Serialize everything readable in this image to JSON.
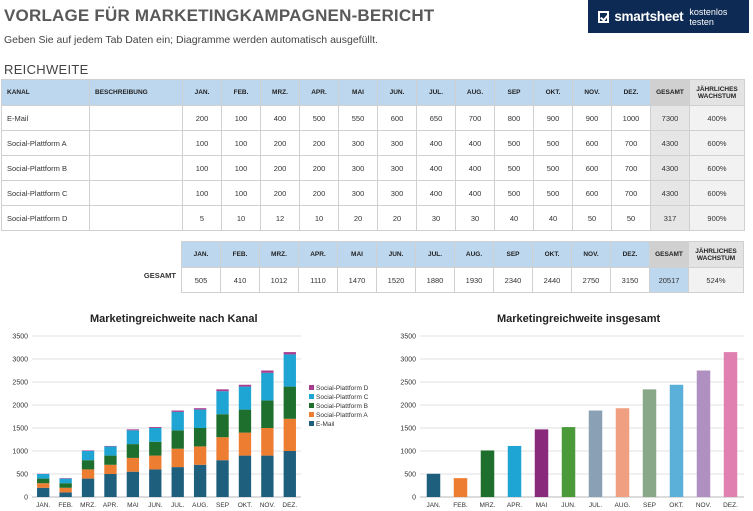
{
  "header": {
    "title": "VORLAGE FÜR MARKETINGKAMPAGNEN-BERICHT",
    "subtitle": "Geben Sie auf jedem Tab Daten ein; Diagramme werden automatisch ausgefüllt.",
    "section": "REICHWEITE"
  },
  "logo": {
    "brand": "smartsheet",
    "cta": "kostenlos testen",
    "icon": "checkmark-box-icon"
  },
  "table": {
    "headers": [
      "KANAL",
      "BESCHREIBUNG",
      "JAN.",
      "FEB.",
      "MRZ.",
      "APR.",
      "MAI",
      "JUN.",
      "JUL.",
      "AUG.",
      "SEP",
      "OKT.",
      "NOV.",
      "DEZ.",
      "GESAMT",
      "JÄHRLICHES WACHSTUM"
    ],
    "rows": [
      {
        "kanal": "E-Mail",
        "beschreibung": "",
        "values": [
          "200",
          "100",
          "400",
          "500",
          "550",
          "600",
          "650",
          "700",
          "800",
          "900",
          "900",
          "1000"
        ],
        "gesamt": "7300",
        "wachstum": "400%"
      },
      {
        "kanal": "Social-Plattform A",
        "beschreibung": "",
        "values": [
          "100",
          "100",
          "200",
          "200",
          "300",
          "300",
          "400",
          "400",
          "500",
          "500",
          "600",
          "700"
        ],
        "gesamt": "4300",
        "wachstum": "600%"
      },
      {
        "kanal": "Social-Plattform B",
        "beschreibung": "",
        "values": [
          "100",
          "100",
          "200",
          "200",
          "300",
          "300",
          "400",
          "400",
          "500",
          "500",
          "600",
          "700"
        ],
        "gesamt": "4300",
        "wachstum": "600%"
      },
      {
        "kanal": "Social-Plattform C",
        "beschreibung": "",
        "values": [
          "100",
          "100",
          "200",
          "200",
          "300",
          "300",
          "400",
          "400",
          "500",
          "500",
          "600",
          "700"
        ],
        "gesamt": "4300",
        "wachstum": "600%"
      },
      {
        "kanal": "Social-Plattform D",
        "beschreibung": "",
        "values": [
          "5",
          "10",
          "12",
          "10",
          "20",
          "20",
          "30",
          "30",
          "40",
          "40",
          "50",
          "50"
        ],
        "gesamt": "317",
        "wachstum": "900%"
      }
    ]
  },
  "totals": {
    "label": "GESAMT",
    "headers": [
      "JAN.",
      "FEB.",
      "MRZ.",
      "APR.",
      "MAI",
      "JUN.",
      "JUL.",
      "AUG.",
      "SEP",
      "OKT.",
      "NOV.",
      "DEZ.",
      "GESAMT",
      "JÄHRLICHES WACHSTUM"
    ],
    "values": [
      "505",
      "410",
      "1012",
      "1110",
      "1470",
      "1520",
      "1880",
      "1930",
      "2340",
      "2440",
      "2750",
      "3150"
    ],
    "gesamt": "20517",
    "wachstum": "524%"
  },
  "chart_data": [
    {
      "type": "bar",
      "stacked": true,
      "title": "Marketingreichweite nach Kanal",
      "categories": [
        "JAN.",
        "FEB.",
        "MRZ.",
        "APR.",
        "MAI",
        "JUN.",
        "JUL.",
        "AUG.",
        "SEP",
        "OKT.",
        "NOV.",
        "DEZ."
      ],
      "series": [
        {
          "name": "E-Mail",
          "color": "#1f5f7e",
          "values": [
            200,
            100,
            400,
            500,
            550,
            600,
            650,
            700,
            800,
            900,
            900,
            1000
          ]
        },
        {
          "name": "Social-Plattform A",
          "color": "#ed7d31",
          "values": [
            100,
            100,
            200,
            200,
            300,
            300,
            400,
            400,
            500,
            500,
            600,
            700
          ]
        },
        {
          "name": "Social-Plattform B",
          "color": "#1e6e2e",
          "values": [
            100,
            100,
            200,
            200,
            300,
            300,
            400,
            400,
            500,
            500,
            600,
            700
          ]
        },
        {
          "name": "Social-Plattform C",
          "color": "#1ea5d4",
          "values": [
            100,
            100,
            200,
            200,
            300,
            300,
            400,
            400,
            500,
            500,
            600,
            700
          ]
        },
        {
          "name": "Social-Plattform D",
          "color": "#a83c8e",
          "values": [
            5,
            10,
            12,
            10,
            20,
            20,
            30,
            30,
            40,
            40,
            50,
            50
          ]
        }
      ],
      "ylim": [
        0,
        3500
      ],
      "yticks": [
        0,
        500,
        1000,
        1500,
        2000,
        2500,
        3000,
        3500
      ],
      "grid": true,
      "legend": "right (reverse order)"
    },
    {
      "type": "bar",
      "title": "Marketingreichweite insgesamt",
      "categories": [
        "JAN.",
        "FEB.",
        "MRZ.",
        "APR.",
        "MAI",
        "JUN.",
        "JUL.",
        "AUG.",
        "SEP",
        "OKT.",
        "NOV.",
        "DEZ."
      ],
      "values": [
        505,
        410,
        1012,
        1110,
        1470,
        1520,
        1880,
        1930,
        2340,
        2440,
        2750,
        3150
      ],
      "colors": [
        "#1f5f7e",
        "#ed7d31",
        "#1e6e2e",
        "#1ea5d4",
        "#8a2a7a",
        "#4a9a3a",
        "#8aa0b4",
        "#f0a080",
        "#88a888",
        "#5ab0d8",
        "#b090c0",
        "#e080b0"
      ],
      "ylim": [
        0,
        3500
      ],
      "yticks": [
        0,
        500,
        1000,
        1500,
        2000,
        2500,
        3000,
        3500
      ],
      "grid": true
    }
  ]
}
